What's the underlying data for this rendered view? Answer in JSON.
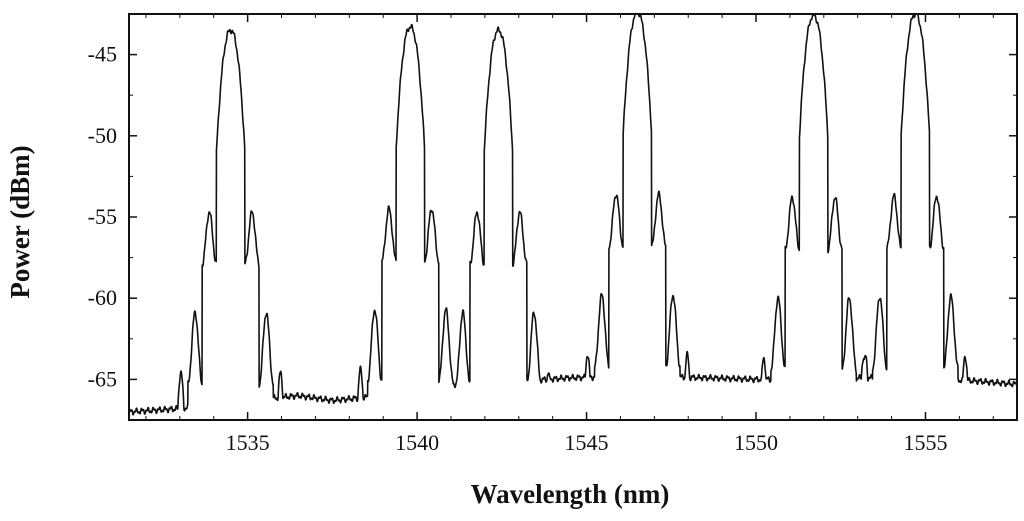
{
  "chart_data": {
    "type": "line",
    "title": "",
    "xlabel": "Wavelength (nm)",
    "ylabel": "Power (dBm)",
    "xlim": [
      1531.5,
      1557.7
    ],
    "ylim": [
      -67.5,
      -42.5
    ],
    "x_ticks": [
      1535,
      1540,
      1545,
      1550,
      1555
    ],
    "x_tick_labels": [
      "1535",
      "1540",
      "1545",
      "1550",
      "1555"
    ],
    "y_ticks": [
      -45,
      -50,
      -55,
      -60,
      -65
    ],
    "y_tick_labels": [
      "-45",
      "-50",
      "-55",
      "-60",
      "-65"
    ],
    "grid": false,
    "legend": "none",
    "line_color": "#111111",
    "series": [
      {
        "peaks": [
          {
            "x": 1534.5,
            "y": -43.5
          },
          {
            "x": 1539.8,
            "y": -43.3
          },
          {
            "x": 1542.4,
            "y": -43.5
          },
          {
            "x": 1546.5,
            "y": -42.4
          },
          {
            "x": 1551.7,
            "y": -42.6
          },
          {
            "x": 1554.7,
            "y": -42.5
          }
        ],
        "baseline": [
          [
            1531.5,
            -67.0
          ],
          [
            1533.0,
            -66.8
          ],
          [
            1534.5,
            -66.4
          ],
          [
            1536.5,
            -66.0
          ],
          [
            1537.5,
            -66.3
          ],
          [
            1538.5,
            -66.1
          ],
          [
            1539.8,
            -65.8
          ],
          [
            1541.0,
            -65.3
          ],
          [
            1542.4,
            -65.2
          ],
          [
            1544.5,
            -64.9
          ],
          [
            1546.5,
            -64.8
          ],
          [
            1548.5,
            -64.9
          ],
          [
            1550.0,
            -65.0
          ],
          [
            1551.7,
            -65.0
          ],
          [
            1553.2,
            -64.9
          ],
          [
            1554.7,
            -64.9
          ],
          [
            1556.5,
            -65.1
          ],
          [
            1557.7,
            -65.3
          ]
        ]
      }
    ]
  }
}
